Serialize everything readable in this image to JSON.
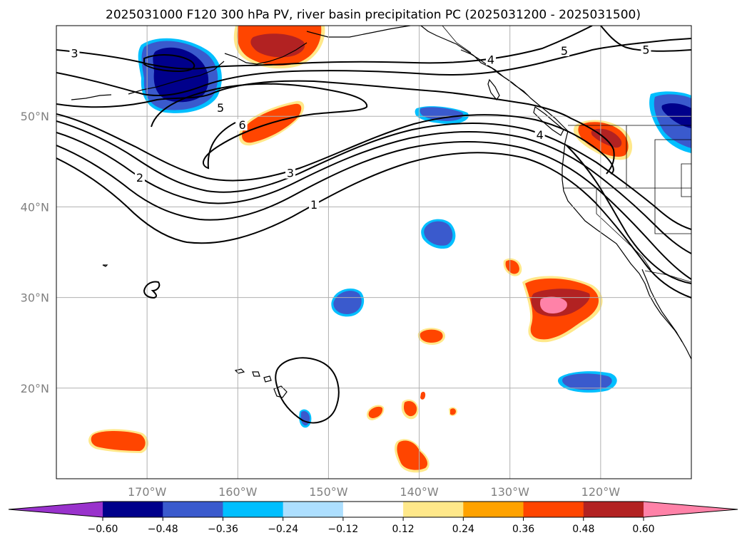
{
  "title": "2025031000 F120 300 hPa PV, river basin precipitation PC (2025031200 - 2025031500)",
  "map": {
    "lon_range": [
      -180,
      -110
    ],
    "lat_range": [
      10,
      60
    ],
    "lat_labels": [
      {
        "value": 50,
        "text": "50°N"
      },
      {
        "value": 40,
        "text": "40°N"
      },
      {
        "value": 30,
        "text": "30°N"
      },
      {
        "value": 20,
        "text": "20°N"
      }
    ],
    "lon_labels": [
      {
        "value": -170,
        "text": "170°W"
      },
      {
        "value": -160,
        "text": "160°W"
      },
      {
        "value": -150,
        "text": "150°W"
      },
      {
        "value": -140,
        "text": "140°W"
      },
      {
        "value": -130,
        "text": "130°W"
      },
      {
        "value": -120,
        "text": "120°W"
      }
    ],
    "pv_contour_labels": [
      {
        "text": "3",
        "lon": -178,
        "lat": 56.8
      },
      {
        "text": "5",
        "lon": -161.9,
        "lat": 50.8
      },
      {
        "text": "6",
        "lon": -159.5,
        "lat": 48.9
      },
      {
        "text": "2",
        "lon": -170.8,
        "lat": 43.1
      },
      {
        "text": "3",
        "lon": -154.2,
        "lat": 43.6
      },
      {
        "text": "1",
        "lon": -151.6,
        "lat": 40.1
      },
      {
        "text": "4",
        "lon": -132.1,
        "lat": 56.1
      },
      {
        "text": "5",
        "lon": -124.0,
        "lat": 57.1
      },
      {
        "text": "5",
        "lon": -115.0,
        "lat": 57.2
      },
      {
        "text": "4",
        "lon": -126.7,
        "lat": 47.8
      }
    ]
  },
  "colorbar": {
    "boundaries": [
      -0.72,
      -0.6,
      -0.48,
      -0.36,
      -0.24,
      -0.12,
      0.12,
      0.24,
      0.36,
      0.48,
      0.6,
      0.72
    ],
    "colors": [
      "#9932cc",
      "#00008b",
      "#3a5acd",
      "#00bfff",
      "#addfff",
      "#ffffff",
      "#ffe88a",
      "#ffa200",
      "#ff4500",
      "#b22222",
      "#ff82a8"
    ],
    "tick_labels": [
      "−0.60",
      "−0.48",
      "−0.36",
      "−0.24",
      "−0.12",
      "0.12",
      "0.24",
      "0.36",
      "0.48",
      "0.60"
    ]
  },
  "precip_regions": [
    {
      "name": "aleutian-west",
      "value": -0.52
    },
    {
      "name": "bering-sea",
      "value": 0.44
    },
    {
      "name": "gulf-alaska-strip",
      "value": 0.36
    },
    {
      "name": "mid-pacific-north",
      "value": -0.3
    },
    {
      "name": "pacific-northwest",
      "value": 0.5
    },
    {
      "name": "canada-east-edge",
      "value": -0.52
    },
    {
      "name": "northeast-pacific-blob",
      "value": -0.38
    },
    {
      "name": "subtropical-north",
      "value": 0.36
    },
    {
      "name": "central-blue",
      "value": -0.38
    },
    {
      "name": "subtropical-large",
      "value": 0.55
    },
    {
      "name": "small-orange-central",
      "value": 0.4
    },
    {
      "name": "hawaii-east-blue",
      "value": -0.34
    },
    {
      "name": "hawaii-southeast",
      "value": -0.32
    },
    {
      "name": "southwest-corner",
      "value": 0.4
    },
    {
      "name": "south-central-small",
      "value": 0.4
    },
    {
      "name": "south-central-large",
      "value": 0.42
    }
  ]
}
